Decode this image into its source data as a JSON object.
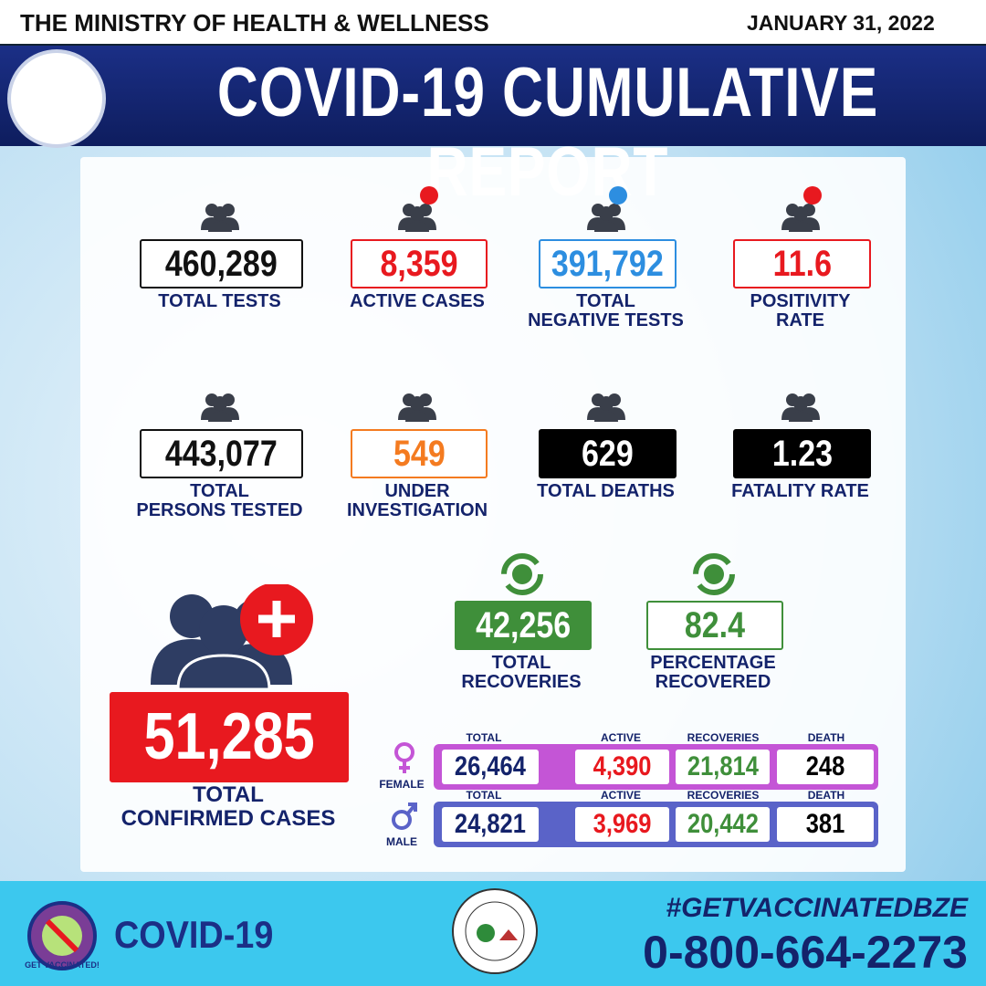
{
  "header": {
    "ministry": "THE MINISTRY OF HEALTH & WELLNESS",
    "date": "JANUARY 31, 2022",
    "title": "COVID-19 CUMULATIVE REPORT"
  },
  "stats": [
    {
      "value": "460,289",
      "label": [
        "TOTAL TESTS"
      ]
    },
    {
      "value": "8,359",
      "label": [
        "ACTIVE CASES"
      ]
    },
    {
      "value": "391,792",
      "label": [
        "TOTAL",
        "NEGATIVE TESTS"
      ]
    },
    {
      "value": "11.6",
      "label": [
        "POSITIVITY",
        "RATE"
      ]
    },
    {
      "value": "443,077",
      "label": [
        "TOTAL",
        "PERSONS TESTED"
      ]
    },
    {
      "value": "549",
      "label": [
        "UNDER",
        "INVESTIGATION"
      ]
    },
    {
      "value": "629",
      "label": [
        "TOTAL DEATHS"
      ]
    },
    {
      "value": "1.23",
      "label": [
        "FATALITY RATE"
      ]
    }
  ],
  "total_confirmed": {
    "value": "51,285",
    "label": [
      "TOTAL",
      "CONFIRMED CASES"
    ]
  },
  "recoveries": [
    {
      "value": "42,256",
      "label": [
        "TOTAL",
        "RECOVERIES"
      ]
    },
    {
      "value": "82.4",
      "label": [
        "PERCENTAGE",
        "RECOVERED"
      ]
    }
  ],
  "gender": {
    "columns": [
      "TOTAL",
      "ACTIVE",
      "RECOVERIES",
      "DEATH"
    ],
    "rows": [
      {
        "name": "FEMALE",
        "values": [
          "26,464",
          "4,390",
          "21,814",
          "248"
        ]
      },
      {
        "name": "MALE",
        "values": [
          "24,821",
          "3,969",
          "20,442",
          "381"
        ]
      }
    ]
  },
  "footer": {
    "hashtag": "#GETVACCINATEDBZE",
    "phone": "0-800-664-2273",
    "logo": "COVID-19",
    "badge": "GET VACCINATED!"
  }
}
